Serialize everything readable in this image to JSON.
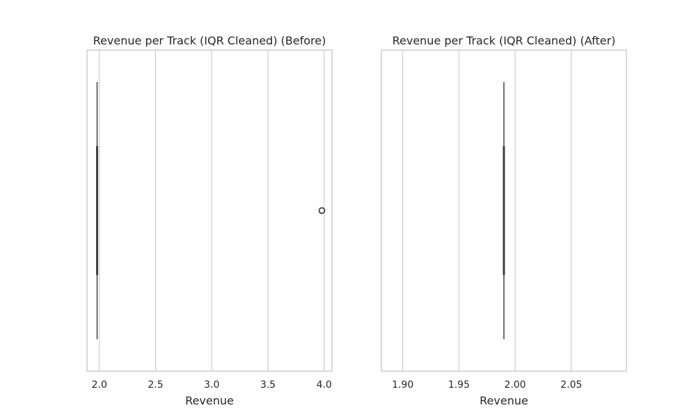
{
  "colors": {
    "background": "#ffffff",
    "frame": "#cccccc",
    "grid": "#cccccc",
    "box_line": "#3f3f3f",
    "text": "#262626"
  },
  "chart_data": [
    {
      "type": "box",
      "title": "Revenue per Track (IQR Cleaned) (Before)",
      "xlabel": "Revenue",
      "ylabel": "",
      "orientation": "horizontal",
      "grid": true,
      "xlim": [
        1.89,
        4.07
      ],
      "ticks": [
        {
          "value": 2.0,
          "label": "2.0"
        },
        {
          "value": 2.5,
          "label": "2.5"
        },
        {
          "value": 3.0,
          "label": "3.0"
        },
        {
          "value": 3.5,
          "label": "3.5"
        },
        {
          "value": 4.0,
          "label": "4.0"
        }
      ],
      "box": {
        "whisker_low": 1.98,
        "q1": 1.98,
        "median": 1.98,
        "q3": 1.98,
        "whisker_high": 1.98
      },
      "outliers": [
        3.98
      ]
    },
    {
      "type": "box",
      "title": "Revenue per Track (IQR Cleaned) (After)",
      "xlabel": "Revenue",
      "ylabel": "",
      "orientation": "horizontal",
      "grid": true,
      "xlim": [
        1.881,
        2.099
      ],
      "ticks": [
        {
          "value": 1.9,
          "label": "1.90"
        },
        {
          "value": 1.95,
          "label": "1.95"
        },
        {
          "value": 2.0,
          "label": "2.00"
        },
        {
          "value": 2.05,
          "label": "2.05"
        }
      ],
      "box": {
        "whisker_low": 1.99,
        "q1": 1.99,
        "median": 1.99,
        "q3": 1.99,
        "whisker_high": 1.99
      },
      "outliers": []
    }
  ]
}
